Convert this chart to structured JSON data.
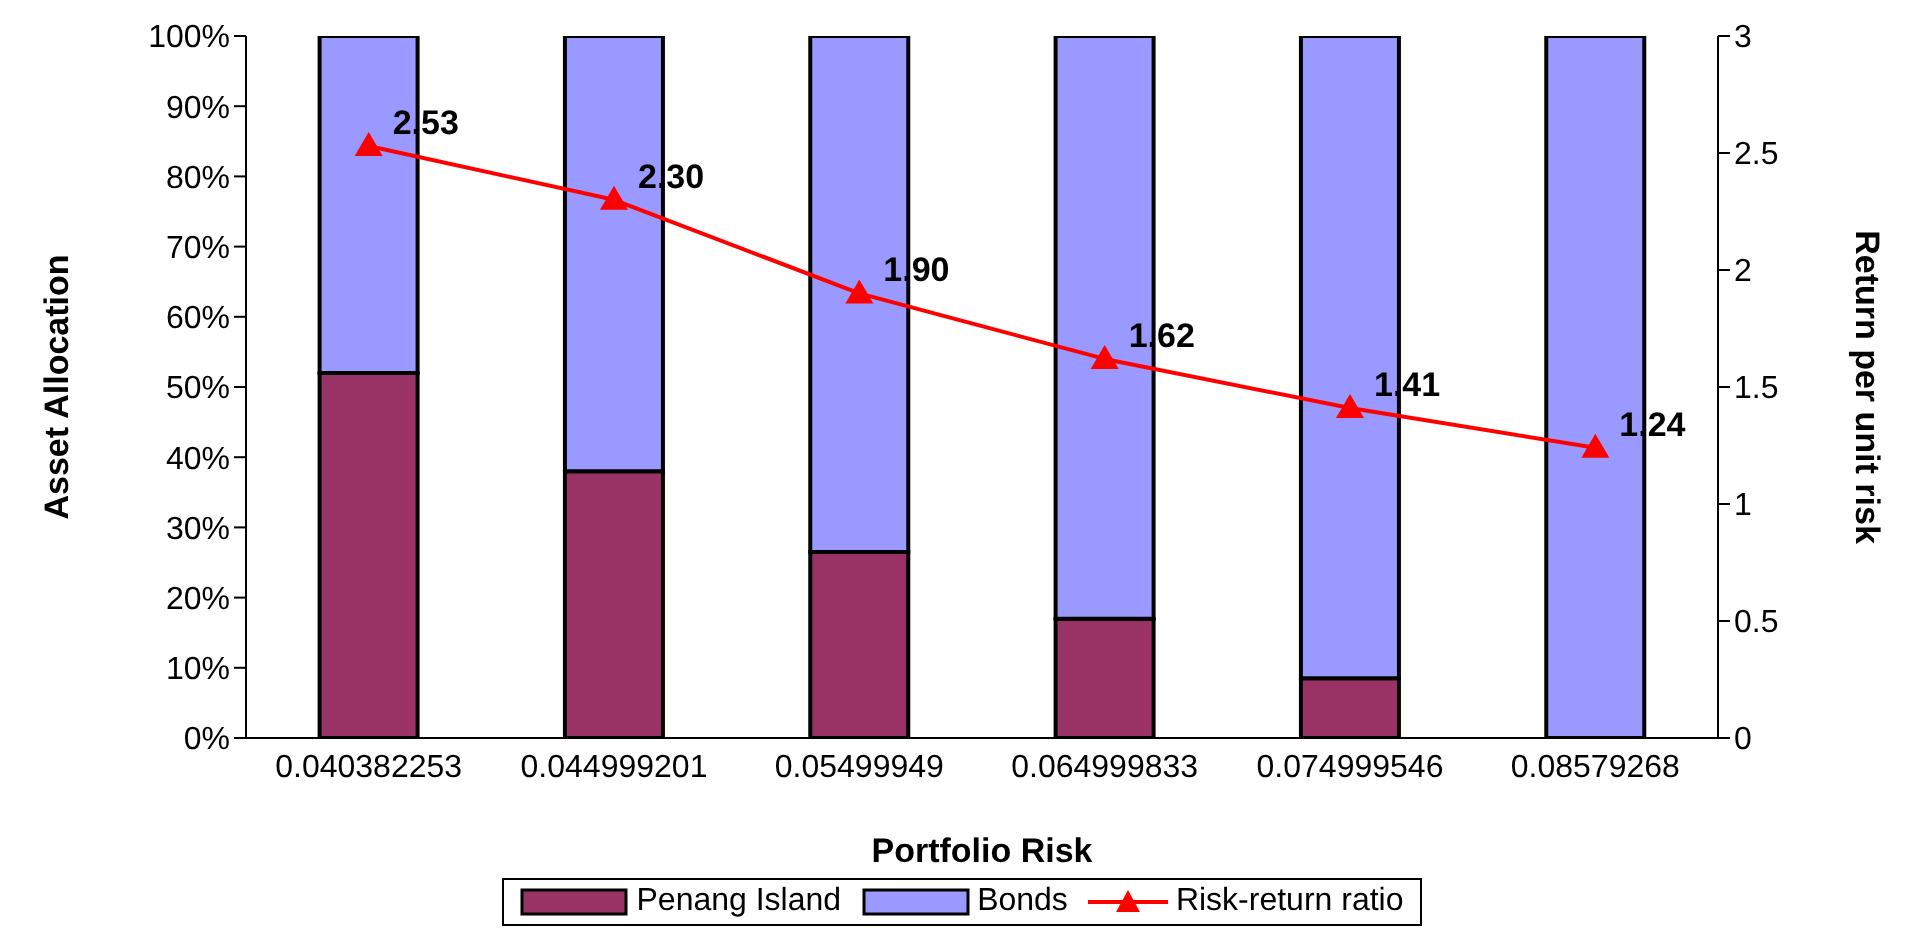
{
  "chart_data": {
    "type": "bar",
    "stacked": true,
    "xlabel": "Portfolio Risk",
    "ylabel": "Asset Allocation",
    "y2label": "Return per unit risk",
    "categories": [
      "0.040382253",
      "0.044999201",
      "0.05499949",
      "0.064999833",
      "0.074999546",
      "0.08579268"
    ],
    "series": [
      {
        "name": "Penang Island",
        "color": "#993366",
        "values": [
          52,
          38,
          26.5,
          17,
          8.5,
          0
        ]
      },
      {
        "name": "Bonds",
        "color": "#9999ff",
        "values": [
          48,
          62,
          73.5,
          83,
          91.5,
          100
        ]
      },
      {
        "name": "Risk-return ratio",
        "type": "line",
        "axis": "y2",
        "color": "#ff0000",
        "marker": "triangle",
        "values": [
          2.53,
          2.3,
          1.9,
          1.62,
          1.41,
          1.24
        ],
        "value_labels": [
          "2.53",
          "2.30",
          "1.90",
          "1.62",
          "1.41",
          "1.24"
        ]
      }
    ],
    "ylim": [
      0,
      100
    ],
    "yticks": [
      {
        "value": 0,
        "label": "0%"
      },
      {
        "value": 10,
        "label": "10%"
      },
      {
        "value": 20,
        "label": "20%"
      },
      {
        "value": 30,
        "label": "30%"
      },
      {
        "value": 40,
        "label": "40%"
      },
      {
        "value": 50,
        "label": "50%"
      },
      {
        "value": 60,
        "label": "60%"
      },
      {
        "value": 70,
        "label": "70%"
      },
      {
        "value": 80,
        "label": "80%"
      },
      {
        "value": 90,
        "label": "90%"
      },
      {
        "value": 100,
        "label": "100%"
      }
    ],
    "y2lim": [
      0,
      3
    ],
    "y2ticks": [
      0,
      0.5,
      1,
      1.5,
      2,
      2.5,
      3
    ],
    "grid": false,
    "legend": "bottom"
  }
}
